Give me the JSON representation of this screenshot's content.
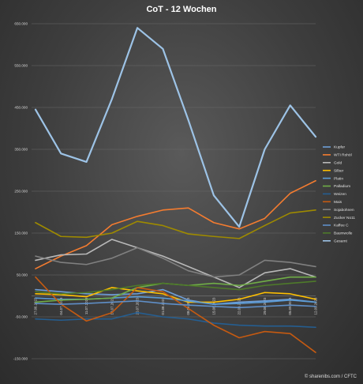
{
  "chart_data": {
    "type": "line",
    "title": "CoT - 12 Wochen",
    "source": "© sharenibs.com / CFTC",
    "ylim": [
      -150000,
      650000
    ],
    "y_ticks": [
      -150000,
      -50000,
      50000,
      150000,
      250000,
      350000,
      450000,
      550000,
      650000
    ],
    "y_tick_labels": [
      "-150.000",
      "-50.000",
      "50.000",
      "150.000",
      "250.000",
      "350.000",
      "450.000",
      "550.000",
      "650.000"
    ],
    "grid": true,
    "legend_position": "right",
    "categories": [
      "27.06.2023",
      "04.07.2023",
      "11.07.2023",
      "18.07.2023",
      "25.07.2023",
      "01.08.2023",
      "08.08.2023",
      "15.08.2023",
      "22.08.2023",
      "29.08.2023",
      "05.09.2023",
      "12.09.2023"
    ],
    "series": [
      {
        "name": "Kupfer",
        "color": "#6f9fd8",
        "values": [
          15000,
          10000,
          5000,
          3000,
          5000,
          15000,
          -10000,
          -20000,
          -15000,
          -12000,
          -8000,
          -15000
        ]
      },
      {
        "name": "WTI Rohöl",
        "color": "#f47c30",
        "values": [
          65000,
          95000,
          120000,
          170000,
          190000,
          205000,
          210000,
          175000,
          160000,
          185000,
          245000,
          275000
        ]
      },
      {
        "name": "Gold",
        "color": "#b8b8b8",
        "values": [
          85000,
          98000,
          100000,
          135000,
          115000,
          95000,
          70000,
          45000,
          20000,
          55000,
          65000,
          45000
        ]
      },
      {
        "name": "Silber",
        "color": "#ffc000",
        "values": [
          5000,
          3000,
          -2000,
          20000,
          12000,
          5000,
          -15000,
          -15000,
          -8000,
          8000,
          5000,
          -8000
        ]
      },
      {
        "name": "Platin",
        "color": "#5b9bd5",
        "values": [
          -5000,
          -8000,
          -8000,
          -5000,
          -2000,
          -5000,
          -12000,
          -20000,
          -18000,
          -15000,
          -10000,
          -15000
        ]
      },
      {
        "name": "Palladium",
        "color": "#70ad47",
        "values": [
          -15000,
          -10000,
          -8000,
          -5000,
          20000,
          30000,
          25000,
          30000,
          25000,
          35000,
          45000,
          45000
        ]
      },
      {
        "name": "Weizen",
        "color": "#255e91",
        "values": [
          -55000,
          -58000,
          -55000,
          -55000,
          -40000,
          -50000,
          -55000,
          -65000,
          -70000,
          -72000,
          -72000,
          -75000
        ]
      },
      {
        "name": "Mais",
        "color": "#c55a11",
        "values": [
          45000,
          -20000,
          -60000,
          -40000,
          20000,
          10000,
          -30000,
          -70000,
          -100000,
          -85000,
          -90000,
          -135000
        ]
      },
      {
        "name": "Sojabohnen",
        "color": "#808080",
        "values": [
          95000,
          80000,
          75000,
          90000,
          115000,
          90000,
          60000,
          45000,
          50000,
          85000,
          80000,
          70000
        ]
      },
      {
        "name": "Zucker No11",
        "color": "#9e8a00",
        "values": [
          175000,
          142000,
          140000,
          150000,
          178000,
          168000,
          148000,
          142000,
          137000,
          168000,
          198000,
          205000
        ]
      },
      {
        "name": "Kaffee C",
        "color": "#5f8fc8",
        "values": [
          -18000,
          -20000,
          -18000,
          -15000,
          -12000,
          -18000,
          -22000,
          -25000,
          -28000,
          -25000,
          -22000,
          -25000
        ]
      },
      {
        "name": "Baumwolle",
        "color": "#4e7a2a",
        "values": [
          10000,
          5000,
          8000,
          15000,
          25000,
          30000,
          25000,
          20000,
          15000,
          25000,
          30000,
          35000
        ]
      },
      {
        "name": "Gesamt",
        "color": "#9dc3e6",
        "values": [
          445000,
          340000,
          320000,
          470000,
          640000,
          590000,
          420000,
          240000,
          165000,
          350000,
          455000,
          380000
        ]
      }
    ]
  }
}
